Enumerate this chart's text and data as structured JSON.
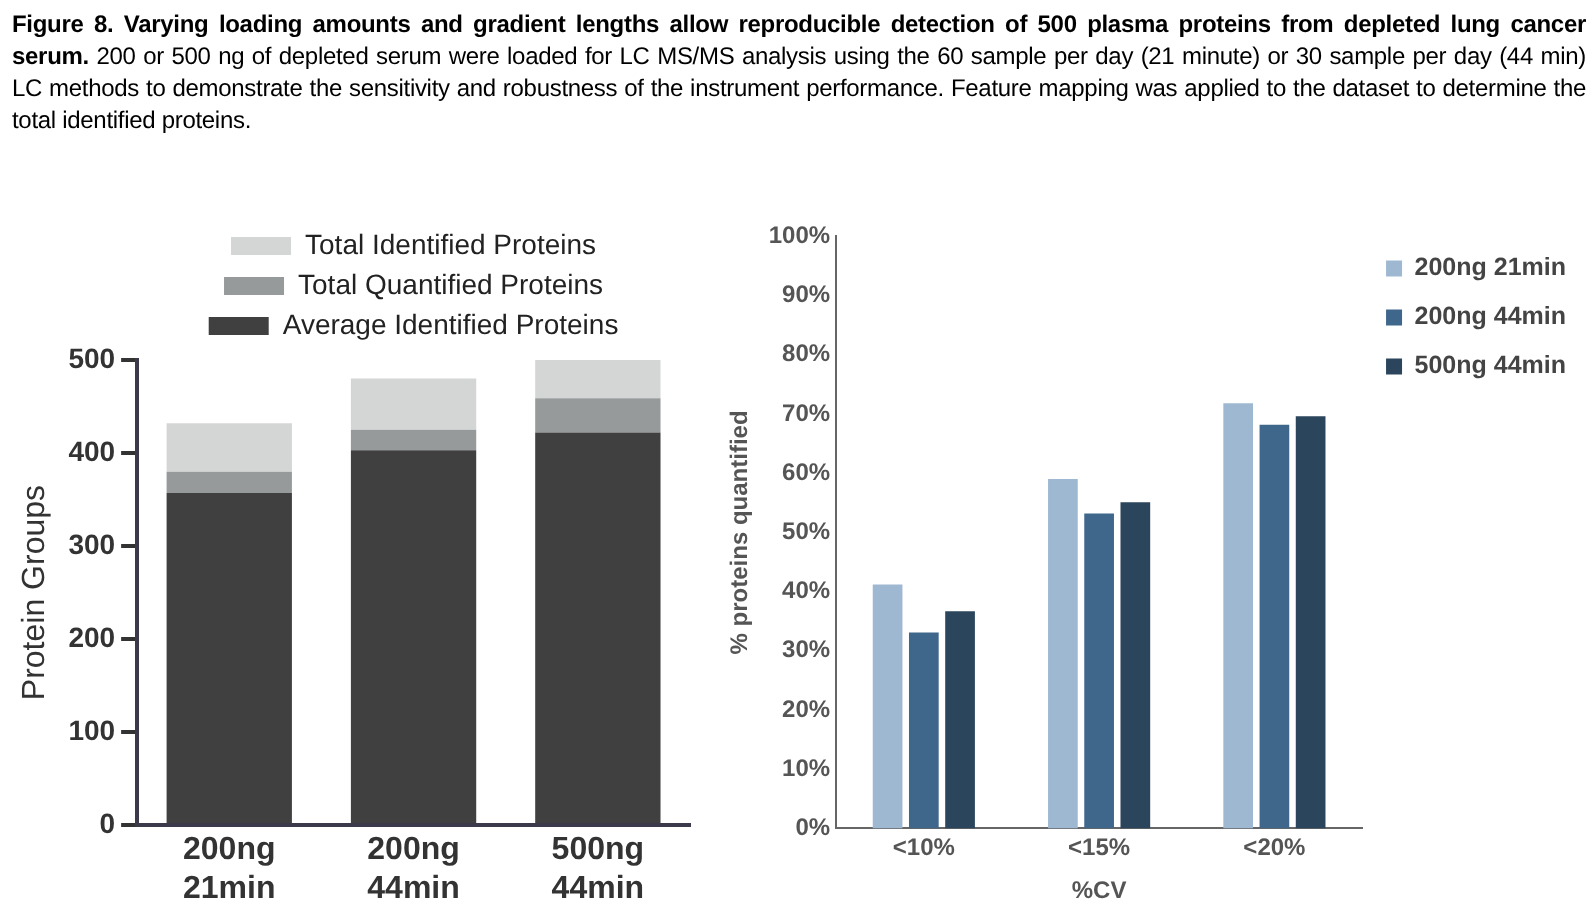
{
  "chart_data": [
    {
      "type": "bar",
      "title": "Figure 8. Varying loading amounts and gradient lengths allow reproducible detection of 500 plasma proteins from depleted lung cancer serum.",
      "subtitle": "200 or 500 ng of depleted serum were loaded for LC MS/MS analysis using the 60 sample per day (21 minute) or 30 sample per day (44 min) LC methods to demonstrate the sensitivity and robustness of the instrument performance. Feature mapping was applied to the dataset to determine the total identified proteins.",
      "ylabel": "Protein Groups",
      "categories": [
        "200ng 21min",
        "200ng 44min",
        "500ng 44min"
      ],
      "stacked": true,
      "series": [
        {
          "name": "Average Identified Proteins",
          "color": "#404040",
          "values": [
            357,
            403,
            422
          ]
        },
        {
          "name": "Total Quantified Proteins",
          "color": "#979a9b",
          "values": [
            23,
            22,
            37
          ]
        },
        {
          "name": "Total Identified Proteins",
          "color": "#d4d6d5",
          "values": [
            52,
            55,
            41
          ]
        }
      ],
      "ylim": [
        0,
        500
      ],
      "yticks": [
        0,
        100,
        200,
        300,
        400,
        500
      ],
      "grid": false,
      "legend": "top"
    },
    {
      "type": "bar",
      "ylabel": "% proteins quantified",
      "xlabel": "%CV",
      "categories": [
        "<10%",
        "<15%",
        "<20%"
      ],
      "series": [
        {
          "name": "200ng 21min",
          "color": "#9fb8d2",
          "values": [
            41.2,
            59,
            71.8
          ]
        },
        {
          "name": "200ng 44min",
          "color": "#3f678c",
          "values": [
            33.1,
            53.2,
            68.2
          ]
        },
        {
          "name": "500ng 44min",
          "color": "#2b455c",
          "values": [
            36.7,
            55.1,
            69.6
          ]
        }
      ],
      "ylim": [
        0,
        100
      ],
      "yticks": [
        {
          "value": 0,
          "label": "0%"
        },
        {
          "value": 10,
          "label": "10%"
        },
        {
          "value": 20,
          "label": "20%"
        },
        {
          "value": 30,
          "label": "30%"
        },
        {
          "value": 40,
          "label": "40%"
        },
        {
          "value": 50,
          "label": "50%"
        },
        {
          "value": 60,
          "label": "60%"
        },
        {
          "value": 70,
          "label": "70%"
        },
        {
          "value": 80,
          "label": "80%"
        },
        {
          "value": 90,
          "label": "90%"
        },
        {
          "value": 100,
          "label": "100%"
        }
      ],
      "grid": false,
      "legend": "top right"
    }
  ]
}
